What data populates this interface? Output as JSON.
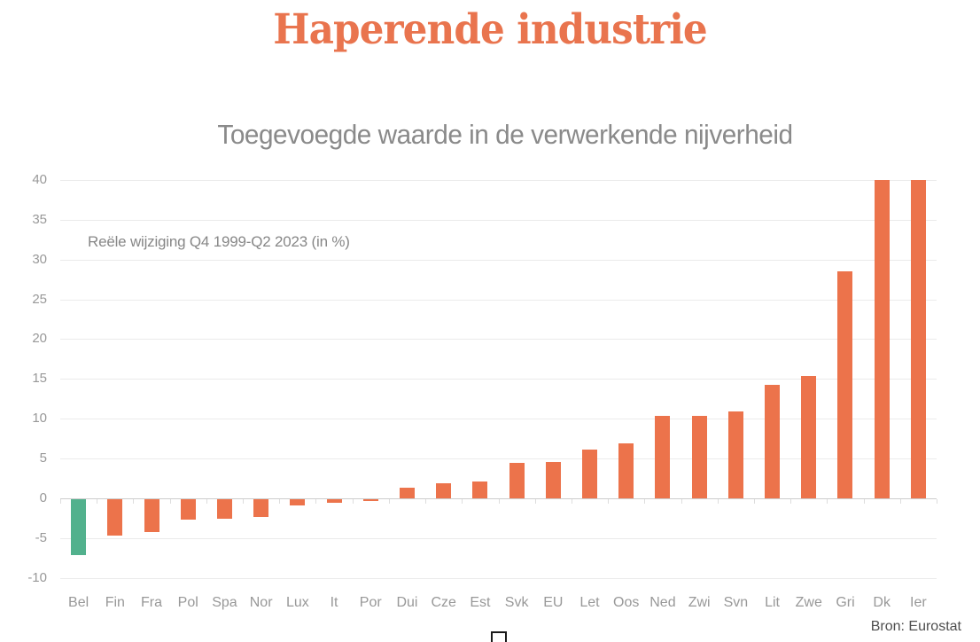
{
  "page_title": "Haperende industrie",
  "chart": {
    "subtitle": "Toegevoegde waarde in de verwerkende nijverheid",
    "annotation": "Reële wijziging Q4 1999-Q2 2023 (in %)",
    "source": "Bron: Eurostat"
  },
  "colors": {
    "title_orange": "#E9744E",
    "bar_orange": "#EC734B",
    "bar_green_highlight": "#52B18D",
    "axis_label_gray": "#989898",
    "subtitle_gray": "#8A8A8A",
    "annotation_gray": "#878787",
    "source_gray": "#4E4E4E"
  },
  "chart_data": {
    "type": "bar",
    "title": "Toegevoegde waarde in de verwerkende nijverheid",
    "annotation": "Reële wijziging Q4 1999-Q2 2023 (in %)",
    "source": "Bron: Eurostat",
    "categories": [
      "Bel",
      "Fin",
      "Fra",
      "Pol",
      "Spa",
      "Nor",
      "Lux",
      "It",
      "Por",
      "Dui",
      "Cze",
      "Est",
      "Svk",
      "EU",
      "Let",
      "Oos",
      "Ned",
      "Zwi",
      "Svn",
      "Lit",
      "Zwe",
      "Gri",
      "Dk",
      "Ier"
    ],
    "values": [
      -7,
      -4.6,
      -4.1,
      -2.6,
      -2.5,
      -2.2,
      -0.8,
      -0.5,
      -0.2,
      1.3,
      1.9,
      2.1,
      4.5,
      4.6,
      6.1,
      6.9,
      10.4,
      10.4,
      10.9,
      14.2,
      15.4,
      28.5,
      40,
      40
    ],
    "highlight_category": "Bel",
    "unit": "%",
    "ylim": [
      -10,
      40
    ],
    "yticks": [
      40,
      35,
      30,
      25,
      20,
      15,
      10,
      5,
      0,
      -5,
      -10
    ],
    "grid": true,
    "legend": false
  }
}
